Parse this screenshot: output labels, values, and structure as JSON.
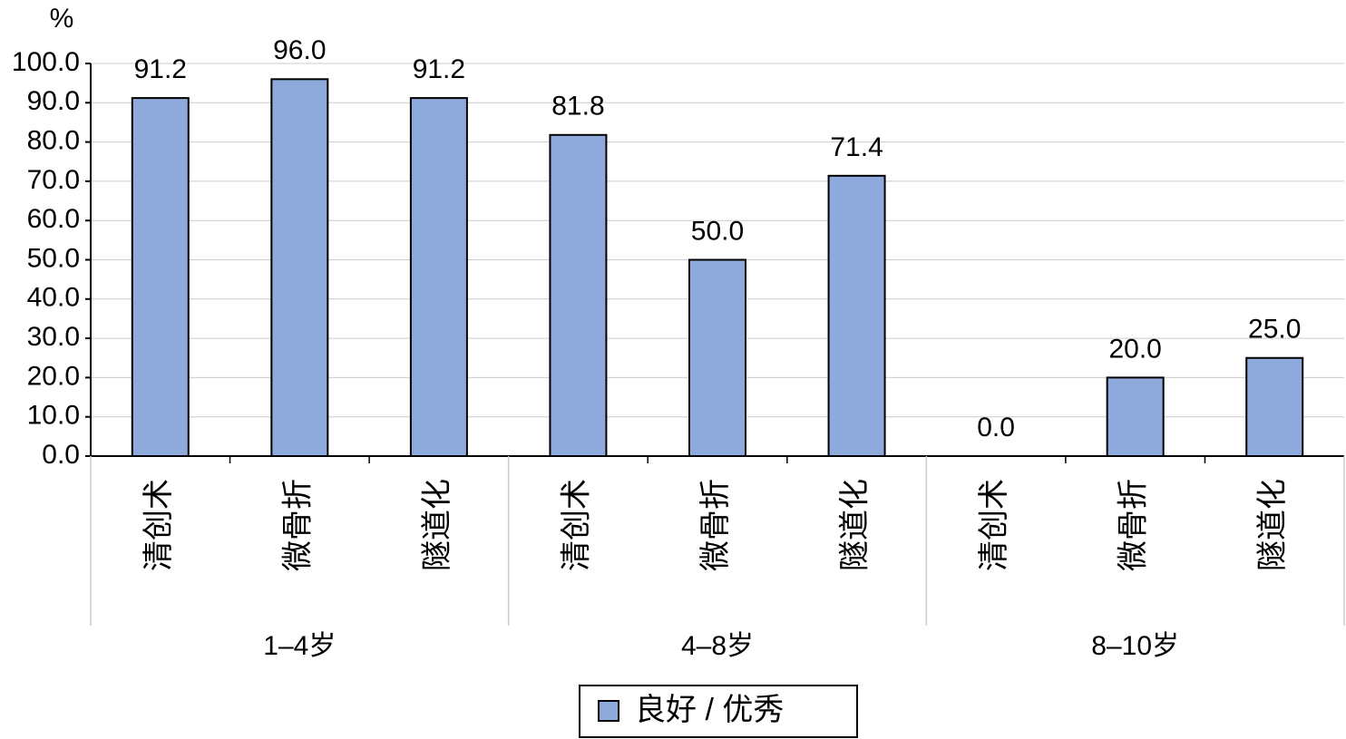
{
  "chart_data": {
    "type": "bar",
    "y_label": "%",
    "groups": [
      {
        "label": "1–4岁",
        "categories": [
          "清创术",
          "微骨折",
          "隧道化"
        ]
      },
      {
        "label": "4–8岁",
        "categories": [
          "清创术",
          "微骨折",
          "隧道化"
        ]
      },
      {
        "label": "8–10岁",
        "categories": [
          "清创术",
          "微骨折",
          "隧道化"
        ]
      }
    ],
    "series": [
      {
        "name": "良好 / 优秀",
        "color": "#8ea9db",
        "values": [
          91.2,
          96.0,
          91.2,
          81.8,
          50.0,
          71.4,
          0.0,
          20.0,
          25.0
        ],
        "value_labels": [
          "91.2",
          "96.0",
          "91.2",
          "81.8",
          "50.0",
          "71.4",
          "0.0",
          "20.0",
          "25.0"
        ]
      }
    ],
    "ylim": [
      0,
      100
    ],
    "yticks": [
      {
        "value": 0,
        "label": "0.0"
      },
      {
        "value": 10,
        "label": "10.0"
      },
      {
        "value": 20,
        "label": "20.0"
      },
      {
        "value": 30,
        "label": "30.0"
      },
      {
        "value": 40,
        "label": "40.0"
      },
      {
        "value": 50,
        "label": "50.0"
      },
      {
        "value": 60,
        "label": "60.0"
      },
      {
        "value": 70,
        "label": "70.0"
      },
      {
        "value": 80,
        "label": "80.0"
      },
      {
        "value": 90,
        "label": "90.0"
      },
      {
        "value": 100,
        "label": "100.0"
      }
    ],
    "grid": true
  }
}
